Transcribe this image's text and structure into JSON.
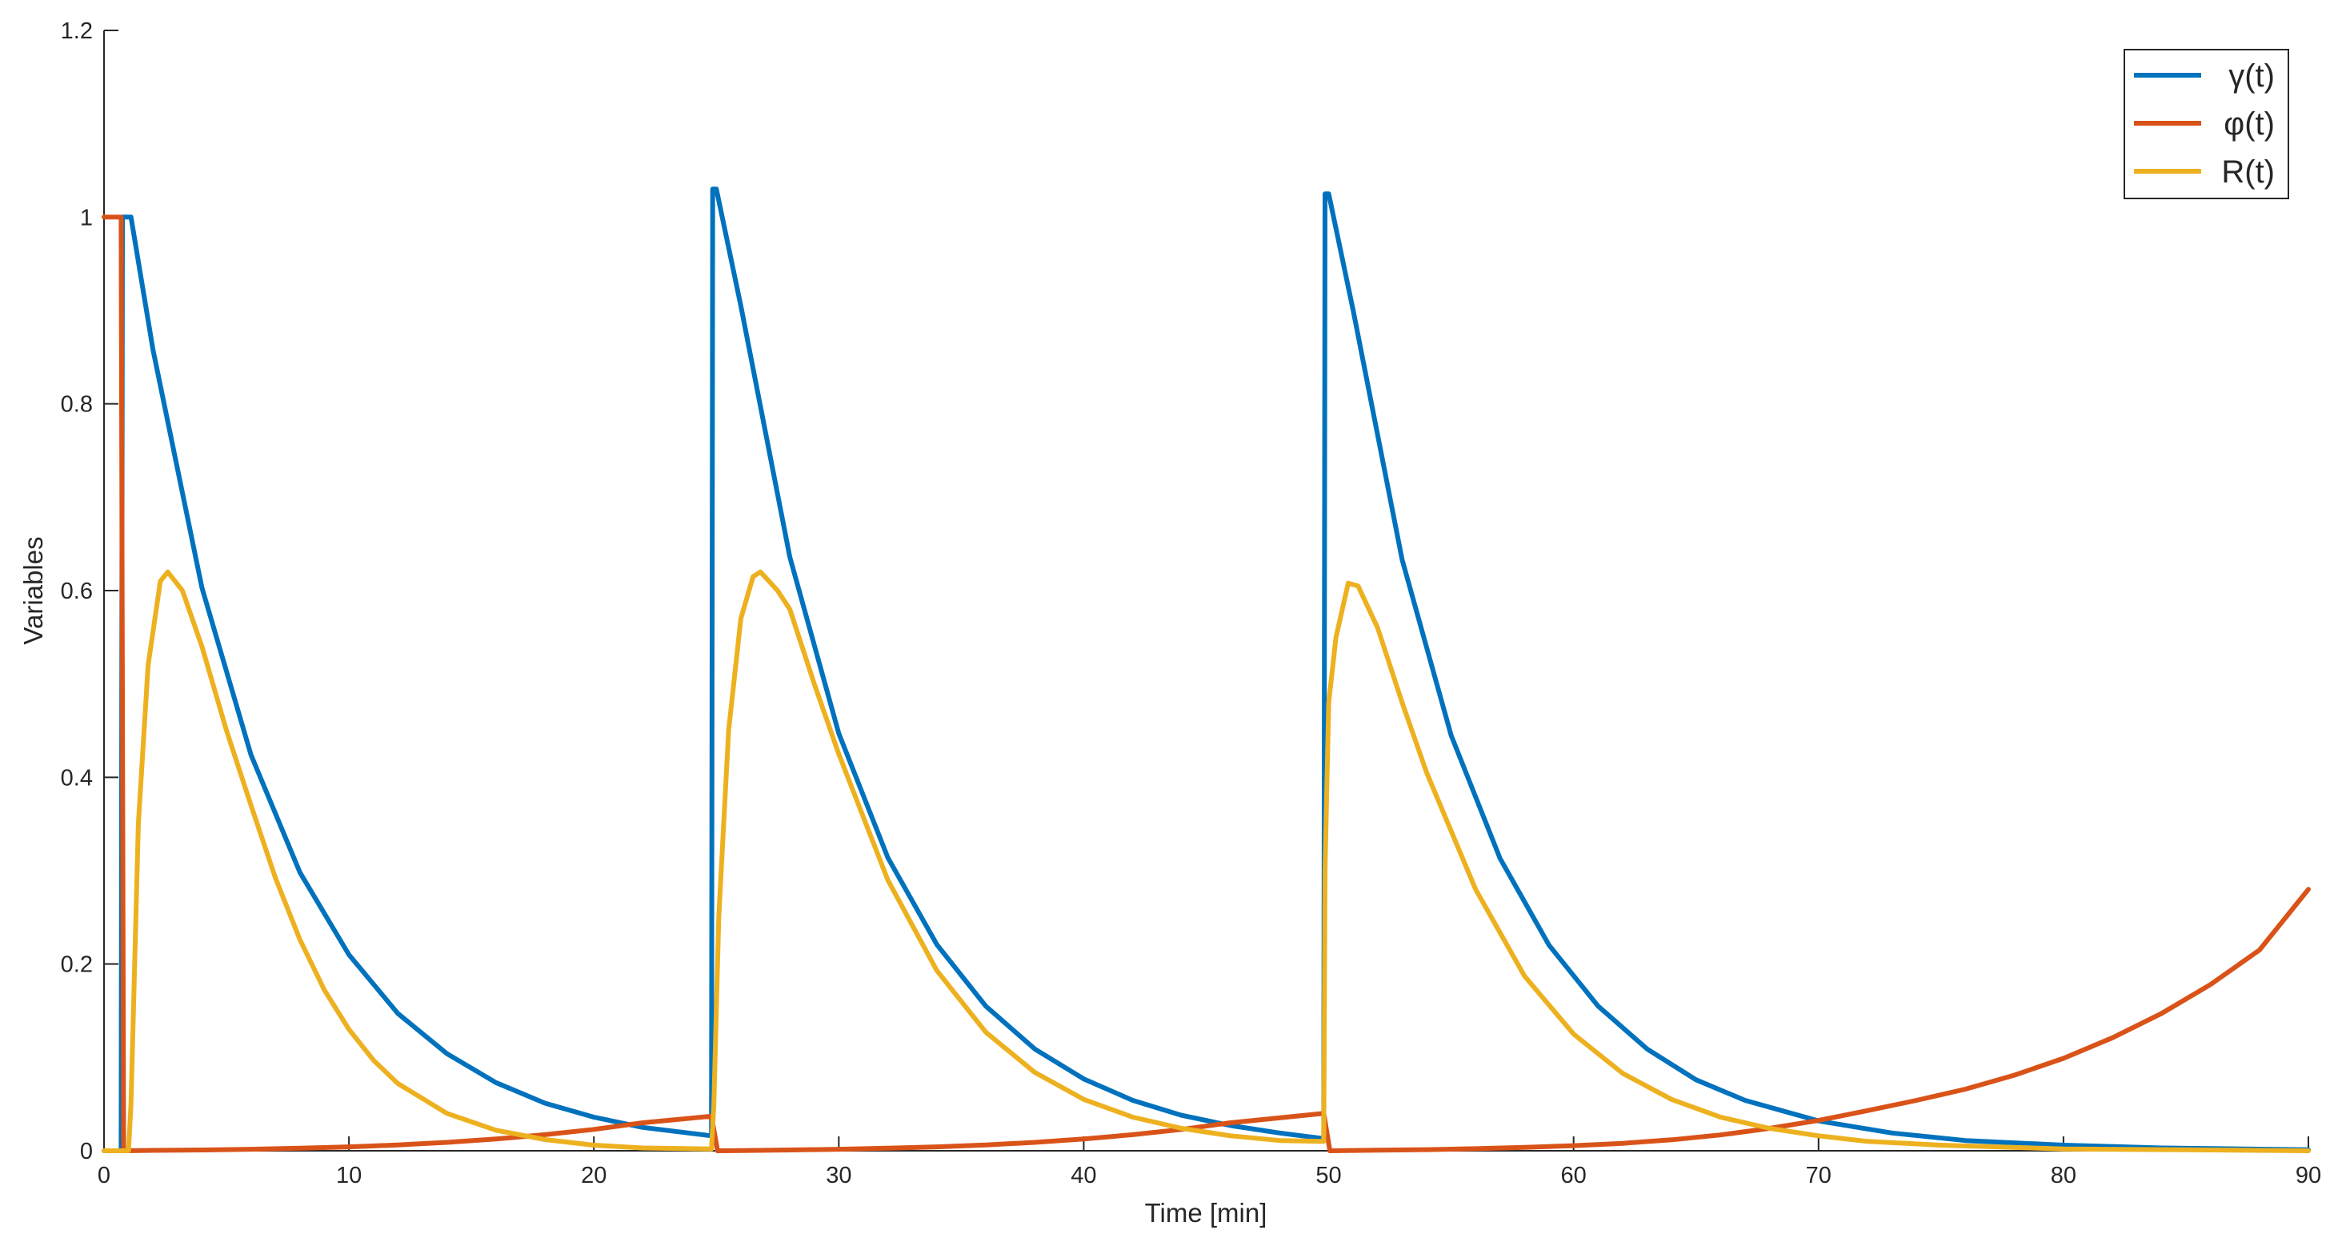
{
  "chart_data": {
    "type": "line",
    "title": "",
    "xlabel": "Time [min]",
    "ylabel": "Variables",
    "xlim": [
      0,
      90
    ],
    "ylim": [
      0,
      1.2
    ],
    "x_ticks": [
      "0",
      "10",
      "20",
      "30",
      "40",
      "50",
      "60",
      "70",
      "80",
      "90"
    ],
    "y_ticks": [
      "0",
      "0.2",
      "0.4",
      "0.6",
      "0.8",
      "1",
      "1.2"
    ],
    "grid": false,
    "legend_position": "top-right",
    "series": [
      {
        "name": "γ(t)",
        "color": "#0072BD",
        "points": [
          [
            0,
            0
          ],
          [
            0.7,
            0
          ],
          [
            0.75,
            1
          ],
          [
            1.0,
            1
          ],
          [
            1.1,
            1
          ],
          [
            2,
            0.858
          ],
          [
            4,
            0.603
          ],
          [
            6,
            0.424
          ],
          [
            8,
            0.298
          ],
          [
            10,
            0.21
          ],
          [
            12,
            0.147
          ],
          [
            14,
            0.104
          ],
          [
            16,
            0.073
          ],
          [
            18,
            0.051
          ],
          [
            20,
            0.036
          ],
          [
            22,
            0.025
          ],
          [
            24.8,
            0.016
          ],
          [
            24.85,
            1.03
          ],
          [
            25,
            1.03
          ],
          [
            26,
            0.905
          ],
          [
            28,
            0.636
          ],
          [
            30,
            0.447
          ],
          [
            32,
            0.314
          ],
          [
            34,
            0.221
          ],
          [
            36,
            0.155
          ],
          [
            38,
            0.109
          ],
          [
            40,
            0.077
          ],
          [
            42,
            0.054
          ],
          [
            44,
            0.038
          ],
          [
            46,
            0.027
          ],
          [
            48,
            0.019
          ],
          [
            49.8,
            0.013
          ],
          [
            49.85,
            1.025
          ],
          [
            50,
            1.025
          ],
          [
            51,
            0.9
          ],
          [
            53,
            0.633
          ],
          [
            55,
            0.445
          ],
          [
            57,
            0.313
          ],
          [
            59,
            0.22
          ],
          [
            61,
            0.155
          ],
          [
            63,
            0.109
          ],
          [
            65,
            0.076
          ],
          [
            67,
            0.054
          ],
          [
            70,
            0.032
          ],
          [
            73,
            0.019
          ],
          [
            76,
            0.011
          ],
          [
            80,
            0.006
          ],
          [
            84,
            0.003
          ],
          [
            90,
            0.001
          ]
        ]
      },
      {
        "name": "φ(t)",
        "color": "#D95319",
        "points": [
          [
            0,
            1
          ],
          [
            0.6,
            1
          ],
          [
            0.7,
            1
          ],
          [
            0.8,
            0
          ],
          [
            2,
            0.0004
          ],
          [
            4,
            0.0009
          ],
          [
            6,
            0.0016
          ],
          [
            8,
            0.0027
          ],
          [
            10,
            0.0042
          ],
          [
            12,
            0.0063
          ],
          [
            14,
            0.009
          ],
          [
            16,
            0.0126
          ],
          [
            18,
            0.0172
          ],
          [
            20,
            0.0229
          ],
          [
            22,
            0.03
          ],
          [
            24.8,
            0.037
          ],
          [
            25.05,
            0
          ],
          [
            26,
            0.0003
          ],
          [
            28,
            0.0009
          ],
          [
            30,
            0.0016
          ],
          [
            32,
            0.0027
          ],
          [
            34,
            0.0042
          ],
          [
            36,
            0.0063
          ],
          [
            38,
            0.009
          ],
          [
            40,
            0.0126
          ],
          [
            42,
            0.0172
          ],
          [
            44,
            0.0229
          ],
          [
            46,
            0.03
          ],
          [
            49.8,
            0.04
          ],
          [
            50.05,
            0
          ],
          [
            52,
            0.0006
          ],
          [
            54,
            0.0012
          ],
          [
            56,
            0.0022
          ],
          [
            58,
            0.0036
          ],
          [
            60,
            0.0055
          ],
          [
            62,
            0.008
          ],
          [
            64,
            0.0117
          ],
          [
            66,
            0.017
          ],
          [
            68,
            0.024
          ],
          [
            70,
            0.0325
          ],
          [
            72,
            0.043
          ],
          [
            74,
            0.054
          ],
          [
            76,
            0.066
          ],
          [
            78,
            0.081
          ],
          [
            80,
            0.099
          ],
          [
            82,
            0.121
          ],
          [
            84,
            0.147
          ],
          [
            86,
            0.178
          ],
          [
            88,
            0.215
          ],
          [
            90,
            0.28
          ]
        ]
      },
      {
        "name": "R(t)",
        "color": "#EDB120",
        "points": [
          [
            0,
            0
          ],
          [
            1.0,
            0
          ],
          [
            1.1,
            0.05
          ],
          [
            1.4,
            0.35
          ],
          [
            1.8,
            0.52
          ],
          [
            2.3,
            0.61
          ],
          [
            2.6,
            0.62
          ],
          [
            3.2,
            0.6
          ],
          [
            4,
            0.54
          ],
          [
            5,
            0.45
          ],
          [
            6,
            0.37
          ],
          [
            7,
            0.292
          ],
          [
            8,
            0.226
          ],
          [
            9,
            0.172
          ],
          [
            10,
            0.13
          ],
          [
            11,
            0.097
          ],
          [
            12,
            0.072
          ],
          [
            14,
            0.04
          ],
          [
            16,
            0.022
          ],
          [
            18,
            0.012
          ],
          [
            20,
            0.006
          ],
          [
            22,
            0.003
          ],
          [
            24.8,
            0.002
          ],
          [
            24.9,
            0.05
          ],
          [
            25.1,
            0.25
          ],
          [
            25.5,
            0.45
          ],
          [
            26,
            0.57
          ],
          [
            26.5,
            0.615
          ],
          [
            26.8,
            0.62
          ],
          [
            27.5,
            0.6
          ],
          [
            28,
            0.58
          ],
          [
            29,
            0.5
          ],
          [
            30,
            0.425
          ],
          [
            32,
            0.29
          ],
          [
            34,
            0.193
          ],
          [
            36,
            0.127
          ],
          [
            38,
            0.084
          ],
          [
            40,
            0.055
          ],
          [
            42,
            0.036
          ],
          [
            44,
            0.024
          ],
          [
            46,
            0.016
          ],
          [
            48,
            0.011
          ],
          [
            49.8,
            0.01
          ],
          [
            49.85,
            0.3
          ],
          [
            50,
            0.48
          ],
          [
            50.3,
            0.55
          ],
          [
            50.8,
            0.608
          ],
          [
            51.2,
            0.605
          ],
          [
            52,
            0.56
          ],
          [
            53,
            0.48
          ],
          [
            54,
            0.405
          ],
          [
            56,
            0.28
          ],
          [
            58,
            0.187
          ],
          [
            60,
            0.125
          ],
          [
            62,
            0.083
          ],
          [
            64,
            0.055
          ],
          [
            66,
            0.036
          ],
          [
            68,
            0.024
          ],
          [
            70,
            0.016
          ],
          [
            72,
            0.01
          ],
          [
            75,
            0.006
          ],
          [
            80,
            0.002
          ],
          [
            85,
            0.001
          ],
          [
            90,
            0
          ]
        ]
      }
    ]
  }
}
